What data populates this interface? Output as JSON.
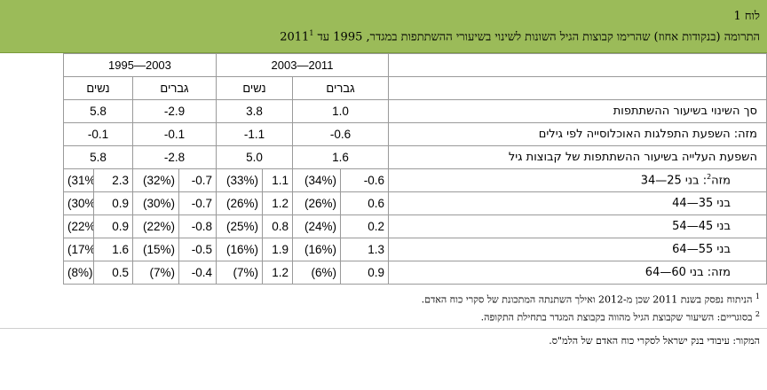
{
  "title": {
    "number": "לוח 1",
    "text": "התרומה (בנקודות אחוז) שהרימו קבוצות הגיל השונות לשינוי בשיעורי ההשתתפות במגדר, 1995 עד 2011",
    "footnote_mark": "1"
  },
  "periods": [
    "2011—2003",
    "2003—1995"
  ],
  "genders": [
    "גברים",
    "נשים",
    "גברים",
    "נשים"
  ],
  "rows": [
    {
      "label": "סך השינוי בשיעור ההשתתפות",
      "values": [
        "1.0",
        "3.8",
        "-2.9",
        "5.8"
      ]
    },
    {
      "label": "מזה: השפעת התפלגות האוכלוסייה לפי גילים",
      "values": [
        "-0.6",
        "-1.1",
        "-0.1",
        "-0.1"
      ]
    },
    {
      "label": "השפעת העלייה בשיעור ההשתתפות של קבוצות גיל",
      "values": [
        "1.6",
        "5.0",
        "-2.8",
        "5.8"
      ]
    }
  ],
  "age_rows": [
    {
      "label": "מזה",
      "sup": "2",
      "label_rest": ": בני 25—34",
      "cells": [
        [
          "-0.6",
          "(34%)"
        ],
        [
          "1.1",
          "(33%)"
        ],
        [
          "-0.7",
          "(32%)"
        ],
        [
          "2.3",
          "(31%)"
        ]
      ]
    },
    {
      "label": "בני 35—44",
      "sup": "",
      "label_rest": "",
      "cells": [
        [
          "0.6",
          "(26%)"
        ],
        [
          "1.2",
          "(26%)"
        ],
        [
          "-0.7",
          "(30%)"
        ],
        [
          "0.9",
          "(30%)"
        ]
      ]
    },
    {
      "label": "בני 45—54",
      "sup": "",
      "label_rest": "",
      "cells": [
        [
          "0.2",
          "(24%)"
        ],
        [
          "0.8",
          "(25%)"
        ],
        [
          "-0.8",
          "(22%)"
        ],
        [
          "0.9",
          "(22%)"
        ]
      ]
    },
    {
      "label": "בני 55—64",
      "sup": "",
      "label_rest": "",
      "cells": [
        [
          "1.3",
          "(16%)"
        ],
        [
          "1.9",
          "(16%)"
        ],
        [
          "-0.5",
          "(15%)"
        ],
        [
          "1.6",
          "(17%)"
        ]
      ]
    },
    {
      "label": "מזה: בני 60—64",
      "sup": "",
      "label_rest": "",
      "cells": [
        [
          "0.9",
          "(6%)"
        ],
        [
          "1.2",
          "(7%)"
        ],
        [
          "-0.4",
          "(7%)"
        ],
        [
          "0.5",
          "(8%)"
        ]
      ]
    }
  ],
  "notes": [
    {
      "mark": "1",
      "text": "הניתוח נפסק בשנת 2011 שכן מ-2012 ואילך השתנתה המתכונת של סקרי כוח האדם."
    },
    {
      "mark": "2",
      "text": "בסוגריים: השיעור שקבוצת הגיל מהווה בקבוצת המגדר בתחילת התקופה."
    }
  ],
  "source": "המקור: עיבודי בנק ישראל לסקרי כוח האדם של הלמ\"ס."
}
